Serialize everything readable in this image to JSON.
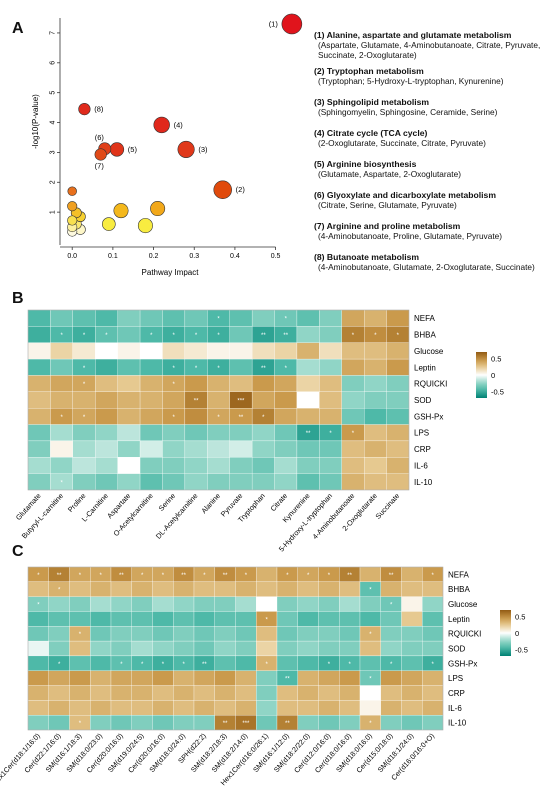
{
  "panels": {
    "a": {
      "letter": "A"
    },
    "b": {
      "letter": "B"
    },
    "c": {
      "letter": "C"
    }
  },
  "chart_data": [
    {
      "type": "scatter",
      "panel": "A",
      "xlabel": "Pathway Impact",
      "ylabel": "-log10(P-value)",
      "xlim": [
        -0.03,
        0.56
      ],
      "ylim": [
        -0.1,
        7.5
      ],
      "xticks": [
        "0.0",
        "0.1",
        "0.2",
        "0.3",
        "0.4",
        "0.5"
      ],
      "yticks": [
        "1",
        "2",
        "3",
        "4",
        "5",
        "6",
        "7"
      ],
      "points": [
        {
          "label": "(1)",
          "x": 0.54,
          "y": 7.3,
          "size": 1.0,
          "color": "#e0141c"
        },
        {
          "label": "(2)",
          "x": 0.37,
          "y": 1.75,
          "size": 0.85,
          "color": "#e04a0c"
        },
        {
          "label": "(3)",
          "x": 0.28,
          "y": 3.1,
          "size": 0.75,
          "color": "#e0381a"
        },
        {
          "label": "(4)",
          "x": 0.22,
          "y": 3.92,
          "size": 0.7,
          "color": "#e0281c"
        },
        {
          "label": "(5)",
          "x": 0.11,
          "y": 3.1,
          "size": 0.55,
          "color": "#e0341a"
        },
        {
          "label": "(6)",
          "x": 0.08,
          "y": 3.12,
          "size": 0.45,
          "color": "#e0401a"
        },
        {
          "label": "(7)",
          "x": 0.07,
          "y": 2.93,
          "size": 0.4,
          "color": "#e04a18"
        },
        {
          "label": "(8)",
          "x": 0.03,
          "y": 4.45,
          "size": 0.4,
          "color": "#e02a1c"
        },
        {
          "label": "",
          "x": 0.21,
          "y": 1.12,
          "size": 0.6,
          "color": "#f2a81a"
        },
        {
          "label": "",
          "x": 0.12,
          "y": 1.05,
          "size": 0.6,
          "color": "#f4b81c"
        },
        {
          "label": "",
          "x": 0.09,
          "y": 0.6,
          "size": 0.5,
          "color": "#f8ec40"
        },
        {
          "label": "",
          "x": 0.18,
          "y": 0.55,
          "size": 0.6,
          "color": "#f8ec40"
        },
        {
          "label": "",
          "x": 0.0,
          "y": 1.7,
          "size": 0.2,
          "color": "#e8701c"
        },
        {
          "label": "",
          "x": 0.0,
          "y": 1.2,
          "size": 0.25,
          "color": "#f0a020"
        },
        {
          "label": "",
          "x": 0.01,
          "y": 0.98,
          "size": 0.3,
          "color": "#f4c028"
        },
        {
          "label": "",
          "x": 0.02,
          "y": 0.85,
          "size": 0.3,
          "color": "#f6d030"
        },
        {
          "label": "",
          "x": 0.0,
          "y": 0.72,
          "size": 0.25,
          "color": "#f8e050"
        },
        {
          "label": "",
          "x": 0.01,
          "y": 0.6,
          "size": 0.3,
          "color": "#fae870"
        },
        {
          "label": "",
          "x": 0.0,
          "y": 0.5,
          "size": 0.25,
          "color": "#fcf0a0"
        },
        {
          "label": "",
          "x": 0.02,
          "y": 0.42,
          "size": 0.3,
          "color": "#fdf6c8"
        },
        {
          "label": "",
          "x": 0.0,
          "y": 0.35,
          "size": 0.25,
          "color": "#fefae0"
        }
      ],
      "legend": [
        {
          "title": "(1) Alanine, aspartate and glutamate metabolism",
          "detail": "(Aspartate, Glutamate, 4-Aminobutanoate, Citrate, Pyruvate, Succinate, 2-Oxoglutarate)"
        },
        {
          "title": "(2) Tryptophan metabolism",
          "detail": "(Tryptophan; 5-Hydroxy-L-tryptophan, Kynurenine)"
        },
        {
          "title": "(3) Sphingolipid metabolism",
          "detail": "(Sphingomyelin, Sphingosine, Ceramide, Serine)"
        },
        {
          "title": "(4) Citrate cycle (TCA cycle)",
          "detail": "(2-Oxoglutarate, Succinate, Citrate, Pyruvate)"
        },
        {
          "title": "(5) Arginine biosynthesis",
          "detail": "(Glutamate, Aspartate, 2-Oxoglutarate)"
        },
        {
          "title": "(6) Glyoxylate and dicarboxylate metabolism",
          "detail": "(Citrate, Serine, Glutamate, Pyruvate)"
        },
        {
          "title": "(7) Arginine and proline metabolism",
          "detail": "(4-Aminobutanoate, Proline, Glutamate, Pyruvate)"
        },
        {
          "title": "(8) Butanoate metabolism",
          "detail": "(4-Aminobutanoate, Glutamate, 2-Oxoglutarate, Succinate)"
        }
      ]
    },
    {
      "type": "heatmap",
      "panel": "B",
      "columns": [
        "Glutamate",
        "Butyryl-L-carnitine",
        "Proline",
        "L-Carnitine",
        "Aspartate",
        "O-Acetylcarnitine",
        "Serine",
        "DL-Acetylcarnitine",
        "Alanine",
        "Pyruvate",
        "Tryptophan",
        "Citrate",
        "Kynurenine",
        "5-Hydroxy-L-tryptophan",
        "4-Aminobutanoate",
        "2-Oxoglutarate",
        "Succinate"
      ],
      "rows": [
        "NEFA",
        "BHBA",
        "Glucose",
        "Leptin",
        "RQUICKI",
        "SOD",
        "GSH-Px",
        "LPS",
        "CRP",
        "IL-6",
        "IL-10"
      ],
      "values": [
        [
          -0.45,
          -0.35,
          -0.4,
          -0.45,
          -0.3,
          -0.35,
          -0.4,
          -0.35,
          -0.45,
          -0.4,
          -0.3,
          -0.35,
          -0.4,
          -0.3,
          0.4,
          0.35,
          0.45
        ],
        [
          -0.5,
          -0.45,
          -0.5,
          -0.4,
          -0.35,
          -0.45,
          -0.5,
          -0.45,
          -0.5,
          -0.35,
          -0.55,
          -0.5,
          -0.25,
          -0.3,
          0.55,
          0.5,
          0.55
        ],
        [
          0.05,
          0.2,
          0.1,
          0.0,
          0.05,
          0.0,
          0.15,
          0.1,
          0.05,
          0.05,
          0.15,
          0.2,
          0.35,
          0.15,
          0.3,
          0.3,
          0.35
        ],
        [
          -0.45,
          -0.35,
          -0.45,
          -0.5,
          -0.4,
          -0.45,
          -0.5,
          -0.45,
          -0.5,
          -0.4,
          -0.55,
          -0.45,
          -0.2,
          -0.25,
          0.4,
          0.35,
          0.45
        ],
        [
          0.35,
          0.4,
          0.4,
          0.3,
          0.25,
          0.35,
          0.4,
          0.45,
          0.35,
          0.3,
          0.45,
          0.4,
          0.2,
          0.3,
          -0.3,
          -0.25,
          -0.3
        ],
        [
          0.3,
          0.35,
          0.35,
          0.4,
          0.35,
          0.35,
          0.4,
          0.55,
          0.35,
          0.65,
          0.4,
          0.45,
          0.0,
          0.3,
          -0.25,
          -0.3,
          -0.3
        ],
        [
          0.35,
          0.45,
          0.4,
          0.45,
          0.35,
          0.4,
          0.45,
          0.5,
          0.4,
          0.45,
          0.55,
          0.4,
          0.35,
          0.35,
          -0.35,
          -0.45,
          -0.4
        ],
        [
          -0.35,
          -0.2,
          -0.3,
          -0.25,
          -0.15,
          -0.35,
          -0.3,
          -0.35,
          -0.3,
          -0.3,
          -0.25,
          -0.35,
          -0.55,
          -0.5,
          0.45,
          0.3,
          0.35
        ],
        [
          -0.3,
          0.05,
          -0.2,
          -0.15,
          -0.25,
          -0.1,
          -0.25,
          -0.2,
          -0.15,
          -0.1,
          -0.25,
          -0.3,
          -0.35,
          -0.35,
          0.3,
          0.35,
          0.3
        ],
        [
          -0.2,
          -0.25,
          -0.15,
          -0.2,
          0.0,
          -0.3,
          -0.3,
          -0.25,
          -0.2,
          -0.3,
          -0.35,
          -0.2,
          -0.3,
          -0.3,
          0.3,
          0.25,
          0.35
        ],
        [
          -0.3,
          -0.2,
          -0.3,
          -0.35,
          -0.25,
          -0.4,
          -0.35,
          -0.25,
          -0.3,
          -0.3,
          -0.3,
          -0.25,
          -0.4,
          -0.35,
          0.35,
          0.3,
          0.3
        ]
      ],
      "stars": [
        [
          "",
          "",
          "",
          "",
          "",
          "",
          "",
          "",
          "*",
          "",
          "",
          "*",
          "",
          "",
          "",
          "",
          ""
        ],
        [
          "",
          "*",
          "*",
          "*",
          "",
          "*",
          "*",
          "*",
          "*",
          "",
          "**",
          "**",
          "",
          "",
          "*",
          "*",
          "*"
        ],
        [
          "",
          "",
          "",
          "",
          "",
          "",
          "",
          "",
          "",
          "",
          "",
          "",
          "",
          "",
          "",
          "",
          ""
        ],
        [
          "",
          "",
          "*",
          "",
          "",
          "",
          "*",
          "*",
          "*",
          "",
          "**",
          "*",
          "",
          "",
          "",
          "",
          ""
        ],
        [
          "",
          "",
          "*",
          "",
          "",
          "",
          "*",
          "",
          "",
          "",
          "",
          "",
          "",
          "",
          "",
          "",
          ""
        ],
        [
          "",
          "",
          "",
          "",
          "",
          "",
          "",
          "**",
          "",
          "***",
          "",
          "",
          "",
          "",
          "",
          "",
          ""
        ],
        [
          "",
          "*",
          "*",
          "",
          "",
          "",
          "*",
          "",
          "*",
          "**",
          "*",
          "",
          "",
          "",
          "",
          "",
          ""
        ],
        [
          "",
          "",
          "",
          "",
          "",
          "",
          "",
          "",
          "",
          "",
          "",
          "",
          "**",
          "*",
          "*",
          "",
          ""
        ],
        [
          "",
          "",
          "",
          "",
          "",
          "",
          "",
          "",
          "",
          "",
          "",
          "",
          "",
          "",
          "",
          "",
          ""
        ],
        [
          "",
          "",
          "",
          "",
          "",
          "",
          "",
          "",
          "",
          "",
          "",
          "",
          "",
          "",
          "",
          "",
          ""
        ],
        [
          "",
          "*",
          "",
          "",
          "",
          "",
          "",
          "",
          "",
          "",
          "",
          "",
          "",
          "",
          "",
          "",
          ""
        ]
      ],
      "colorbar": {
        "ticks": [
          "0.5",
          "0",
          "-0.5"
        ],
        "range": [
          -0.7,
          0.7
        ]
      }
    },
    {
      "type": "heatmap",
      "panel": "C",
      "columns": [
        "Hex1Cer(d18:1/16:0)",
        "Cer(d22:1/16:0)",
        "SM(d16:1/18:3)",
        "SM(d18:0/23:0)",
        "Cer(d20:0/16:0)",
        "SM(d19:0/24:5)",
        "Cer(d20:0/16:0)",
        "SM(d18:0/24:0)",
        "SPH(d22:2)",
        "SM(d18:2/18:3)",
        "SM(d18:2/14:0)",
        "Hex1Cer(d16:0/26:1)",
        "SM(d16:1/12:0)",
        "SM(d18:2/22:0)",
        "Cer(d12:0/16:0)",
        "Cer(d18:0/16:0)",
        "SM(d18:0/16:0)",
        "Cer(d15:0/18:0)",
        "SM(d18:1/24:0)",
        "Cer(d16:0/16:0+O)"
      ],
      "rows": [
        "NEFA",
        "BHBA",
        "Glucose",
        "Leptin",
        "RQUICKI",
        "SOD",
        "GSH-Px",
        "LPS",
        "CRP",
        "IL-6",
        "IL-10"
      ],
      "values": [
        [
          0.45,
          0.55,
          0.4,
          0.4,
          0.5,
          0.4,
          0.4,
          0.5,
          0.4,
          0.5,
          0.45,
          0.35,
          0.45,
          0.4,
          0.45,
          0.55,
          0.35,
          0.5,
          0.35,
          0.45
        ],
        [
          0.3,
          0.35,
          0.3,
          0.35,
          0.3,
          0.35,
          0.3,
          0.35,
          0.3,
          0.3,
          0.35,
          0.3,
          0.35,
          0.3,
          0.35,
          0.3,
          -0.4,
          0.35,
          0.3,
          0.3
        ],
        [
          -0.3,
          -0.25,
          -0.3,
          -0.2,
          -0.25,
          -0.3,
          -0.2,
          -0.25,
          -0.3,
          -0.3,
          -0.2,
          0.0,
          -0.3,
          -0.25,
          -0.3,
          -0.2,
          -0.3,
          -0.35,
          0.05,
          -0.25
        ],
        [
          -0.45,
          -0.4,
          -0.4,
          -0.45,
          -0.4,
          -0.4,
          -0.45,
          -0.4,
          -0.45,
          -0.4,
          -0.4,
          0.45,
          -0.35,
          -0.45,
          -0.4,
          -0.4,
          -0.45,
          -0.35,
          0.25,
          -0.4
        ],
        [
          -0.35,
          -0.3,
          0.35,
          -0.35,
          -0.3,
          -0.3,
          -0.35,
          -0.3,
          -0.35,
          -0.3,
          -0.35,
          0.3,
          -0.35,
          -0.3,
          -0.3,
          -0.35,
          0.35,
          -0.3,
          -0.3,
          -0.35
        ],
        [
          -0.05,
          -0.3,
          0.3,
          -0.25,
          -0.3,
          -0.2,
          -0.25,
          -0.3,
          -0.35,
          -0.25,
          -0.3,
          0.2,
          -0.3,
          -0.25,
          -0.3,
          -0.3,
          0.3,
          -0.25,
          -0.3,
          -0.3
        ],
        [
          -0.45,
          -0.5,
          -0.4,
          -0.45,
          -0.4,
          -0.45,
          -0.5,
          -0.45,
          -0.5,
          -0.4,
          -0.45,
          0.35,
          -0.4,
          -0.45,
          -0.5,
          -0.45,
          -0.4,
          -0.45,
          -0.4,
          -0.5
        ],
        [
          0.45,
          0.4,
          0.45,
          0.35,
          0.4,
          0.4,
          0.45,
          0.35,
          0.4,
          0.45,
          0.35,
          -0.3,
          -0.45,
          0.35,
          0.4,
          0.45,
          -0.35,
          0.45,
          0.4,
          0.35
        ],
        [
          0.35,
          0.3,
          0.35,
          0.3,
          0.35,
          0.35,
          0.3,
          0.35,
          0.3,
          0.35,
          0.3,
          -0.3,
          0.3,
          0.35,
          0.3,
          0.35,
          0.0,
          0.3,
          0.35,
          0.3
        ],
        [
          0.3,
          0.35,
          0.3,
          0.35,
          0.3,
          0.3,
          0.35,
          0.3,
          0.35,
          0.3,
          0.35,
          -0.25,
          0.3,
          0.3,
          0.35,
          0.3,
          0.05,
          0.35,
          0.3,
          0.35
        ],
        [
          -0.3,
          -0.35,
          0.3,
          -0.3,
          -0.35,
          -0.3,
          -0.35,
          -0.3,
          -0.3,
          0.55,
          0.6,
          -0.35,
          0.55,
          -0.3,
          -0.35,
          -0.3,
          0.35,
          -0.3,
          -0.35,
          -0.3
        ]
      ],
      "stars": [
        [
          "*",
          "**",
          "*",
          "*",
          "**",
          "*",
          "*",
          "**",
          "*",
          "**",
          "*",
          "",
          "*",
          "*",
          "*",
          "**",
          "",
          "**",
          "",
          "*"
        ],
        [
          "",
          "*",
          "",
          "",
          "",
          "",
          "",
          "",
          "",
          "",
          "",
          "",
          "",
          "",
          "",
          "",
          "*",
          "",
          "",
          ""
        ],
        [
          "*",
          "",
          "",
          "",
          "",
          "",
          "",
          "",
          "",
          "",
          "",
          "",
          "",
          "",
          "",
          "",
          "",
          "*",
          "",
          ""
        ],
        [
          "",
          "",
          "",
          "",
          "",
          "",
          "",
          "",
          "",
          "",
          "",
          "*",
          "",
          "",
          "",
          "",
          "",
          "",
          "",
          ""
        ],
        [
          "",
          "",
          "*",
          "",
          "",
          "",
          "",
          "",
          "",
          "",
          "",
          "",
          "",
          "",
          "",
          "",
          "*",
          "",
          "",
          ""
        ],
        [
          "",
          "",
          "",
          "",
          "",
          "",
          "",
          "",
          "",
          "",
          "",
          "",
          "",
          "",
          "",
          "",
          "",
          "",
          "",
          ""
        ],
        [
          "",
          "*",
          "",
          "",
          "*",
          "*",
          "*",
          "*",
          "**",
          "",
          "",
          "*",
          "",
          "",
          "*",
          "*",
          "",
          "*",
          "",
          "*"
        ],
        [
          "",
          "",
          "",
          "",
          "",
          "",
          "",
          "",
          "",
          "",
          "",
          "",
          "**",
          "",
          "",
          "",
          "*",
          "",
          "",
          ""
        ],
        [
          "",
          "",
          "",
          "",
          "",
          "",
          "",
          "",
          "",
          "",
          "",
          "",
          "",
          "",
          "",
          "",
          "",
          "",
          "",
          ""
        ],
        [
          "",
          "",
          "",
          "",
          "",
          "",
          "",
          "",
          "",
          "",
          "",
          "",
          "",
          "",
          "",
          "",
          "",
          "",
          "",
          ""
        ],
        [
          "",
          "",
          "*",
          "",
          "",
          "",
          "",
          "",
          "",
          "**",
          "***",
          "",
          "**",
          "",
          "",
          "",
          "*",
          "",
          "",
          ""
        ]
      ],
      "colorbar": {
        "ticks": [
          "0.5",
          "0",
          "-0.5"
        ],
        "range": [
          -0.7,
          0.7
        ]
      }
    }
  ]
}
